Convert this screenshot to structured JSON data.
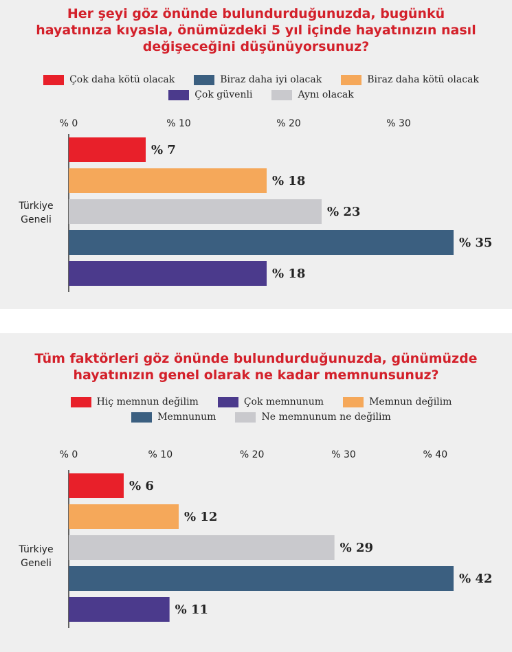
{
  "chart_data": [
    {
      "type": "bar",
      "orientation": "horizontal",
      "title": "Her şeyi göz önünde bulundurduğunuzda, bugünkü hayatınıza kıyasla, önümüzdeki 5 yıl içinde hayatınızın nasıl değişeceğini düşünüyorsunuz?",
      "categories": [
        "Türkiye Geneli"
      ],
      "series": [
        {
          "name": "Çok daha kötü olacak",
          "color": "#e8202a",
          "values": [
            7
          ],
          "value_labels": [
            "% 7"
          ]
        },
        {
          "name": "Biraz daha kötü olacak",
          "color": "#f5a85a",
          "values": [
            18
          ],
          "value_labels": [
            "% 18"
          ]
        },
        {
          "name": "Aynı olacak",
          "color": "#c9c9cd",
          "values": [
            23
          ],
          "value_labels": [
            "% 23"
          ]
        },
        {
          "name": "Biraz daha iyi olacak",
          "color": "#3b5f80",
          "values": [
            35
          ],
          "value_labels": [
            "% 35"
          ]
        },
        {
          "name": "Çok güvenli",
          "color": "#4b3a8c",
          "values": [
            18
          ],
          "value_labels": [
            "% 18"
          ]
        }
      ],
      "xlim": [
        0,
        40
      ],
      "xticks": [
        {
          "value": 0,
          "label": "% 0"
        },
        {
          "value": 10,
          "label": "% 10"
        },
        {
          "value": 20,
          "label": "% 20"
        },
        {
          "value": 30,
          "label": "% 30"
        }
      ]
    },
    {
      "type": "bar",
      "orientation": "horizontal",
      "title": "Tüm faktörleri göz önünde bulundurduğunuzda, günümüzde hayatınızın genel olarak ne kadar memnunsunuz?",
      "categories": [
        "Türkiye Geneli"
      ],
      "series": [
        {
          "name": "Hiç memnun değilim",
          "color": "#e8202a",
          "values": [
            6
          ],
          "value_labels": [
            "% 6"
          ]
        },
        {
          "name": "Memnun değilim",
          "color": "#f5a85a",
          "values": [
            12
          ],
          "value_labels": [
            "% 12"
          ]
        },
        {
          "name": "Ne memnunum ne değilim",
          "color": "#c9c9cd",
          "values": [
            29
          ],
          "value_labels": [
            "% 29"
          ]
        },
        {
          "name": "Memnunum",
          "color": "#3b5f80",
          "values": [
            42
          ],
          "value_labels": [
            "% 42"
          ]
        },
        {
          "name": "Çok memnunum",
          "color": "#4b3a8c",
          "values": [
            11
          ],
          "value_labels": [
            "% 11"
          ]
        }
      ],
      "xlim": [
        0,
        48
      ],
      "xticks": [
        {
          "value": 0,
          "label": "% 0"
        },
        {
          "value": 10,
          "label": "% 10"
        },
        {
          "value": 20,
          "label": "% 20"
        },
        {
          "value": 30,
          "label": "% 30"
        },
        {
          "value": 40,
          "label": "% 40"
        }
      ]
    }
  ]
}
